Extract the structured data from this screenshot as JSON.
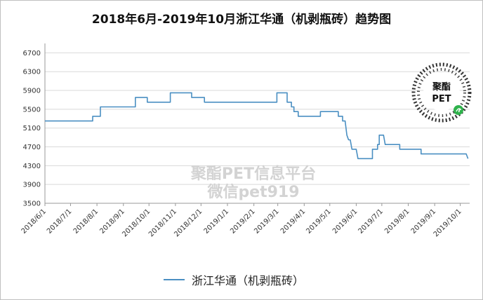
{
  "chart_data": {
    "type": "line",
    "title": "2018年6月-2019年10月浙江华通（机剥瓶砖）趋势图",
    "xlabel": "",
    "ylabel": "",
    "ylim": [
      3500,
      6900
    ],
    "yticks": [
      3500,
      3900,
      4300,
      4700,
      5100,
      5500,
      5900,
      6300,
      6700
    ],
    "xtick_labels": [
      "2018/6/1",
      "2018/7/1",
      "2018/8/1",
      "2018/9/1",
      "2018/10/1",
      "2018/11/1",
      "2018/12/1",
      "2019/1/1",
      "2019/2/1",
      "2019/3/1",
      "2019/4/1",
      "2019/5/1",
      "2019/6/1",
      "2019/7/1",
      "2019/8/1",
      "2019/9/1",
      "2019/10/1"
    ],
    "grid": true,
    "legend_position": "bottom",
    "series": [
      {
        "name": "浙江华通（机剥瓶砖）",
        "color": "#4a8fc2",
        "points": [
          [
            "2018/6/1",
            5250
          ],
          [
            "2018/7/27",
            5250
          ],
          [
            "2018/7/27",
            5350
          ],
          [
            "2018/8/5",
            5350
          ],
          [
            "2018/8/5",
            5550
          ],
          [
            "2018/9/15",
            5550
          ],
          [
            "2018/9/15",
            5750
          ],
          [
            "2018/9/29",
            5750
          ],
          [
            "2018/9/29",
            5650
          ],
          [
            "2018/10/26",
            5650
          ],
          [
            "2018/10/26",
            5850
          ],
          [
            "2018/11/20",
            5850
          ],
          [
            "2018/11/20",
            5750
          ],
          [
            "2018/12/5",
            5750
          ],
          [
            "2018/12/5",
            5650
          ],
          [
            "2019/2/28",
            5650
          ],
          [
            "2019/2/28",
            5850
          ],
          [
            "2019/3/12",
            5850
          ],
          [
            "2019/3/12",
            5650
          ],
          [
            "2019/3/17",
            5650
          ],
          [
            "2019/3/17",
            5550
          ],
          [
            "2019/3/20",
            5550
          ],
          [
            "2019/3/20",
            5450
          ],
          [
            "2019/3/25",
            5450
          ],
          [
            "2019/3/25",
            5350
          ],
          [
            "2019/4/20",
            5350
          ],
          [
            "2019/4/20",
            5450
          ],
          [
            "2019/5/11",
            5450
          ],
          [
            "2019/5/11",
            5350
          ],
          [
            "2019/5/16",
            5350
          ],
          [
            "2019/5/16",
            5250
          ],
          [
            "2019/5/19",
            5250
          ],
          [
            "2019/5/21",
            4950
          ],
          [
            "2019/5/23",
            4850
          ],
          [
            "2019/5/25",
            4850
          ],
          [
            "2019/5/27",
            4650
          ],
          [
            "2019/6/1",
            4650
          ],
          [
            "2019/6/3",
            4450
          ],
          [
            "2019/6/20",
            4450
          ],
          [
            "2019/6/20",
            4650
          ],
          [
            "2019/6/26",
            4650
          ],
          [
            "2019/6/26",
            4750
          ],
          [
            "2019/6/28",
            4750
          ],
          [
            "2019/6/28",
            4950
          ],
          [
            "2019/7/3",
            4950
          ],
          [
            "2019/7/5",
            4750
          ],
          [
            "2019/7/22",
            4750
          ],
          [
            "2019/7/22",
            4650
          ],
          [
            "2019/8/16",
            4650
          ],
          [
            "2019/8/16",
            4550
          ],
          [
            "2019/10/8",
            4550
          ],
          [
            "2019/10/10",
            4450
          ]
        ]
      }
    ],
    "legend": "浙江华通（机剥瓶砖）"
  },
  "watermark": {
    "line1": "聚酯PET信息平台",
    "line2": "微信pet919"
  },
  "logo": {
    "text_top": "聚酯",
    "text_bottom": "PET"
  }
}
